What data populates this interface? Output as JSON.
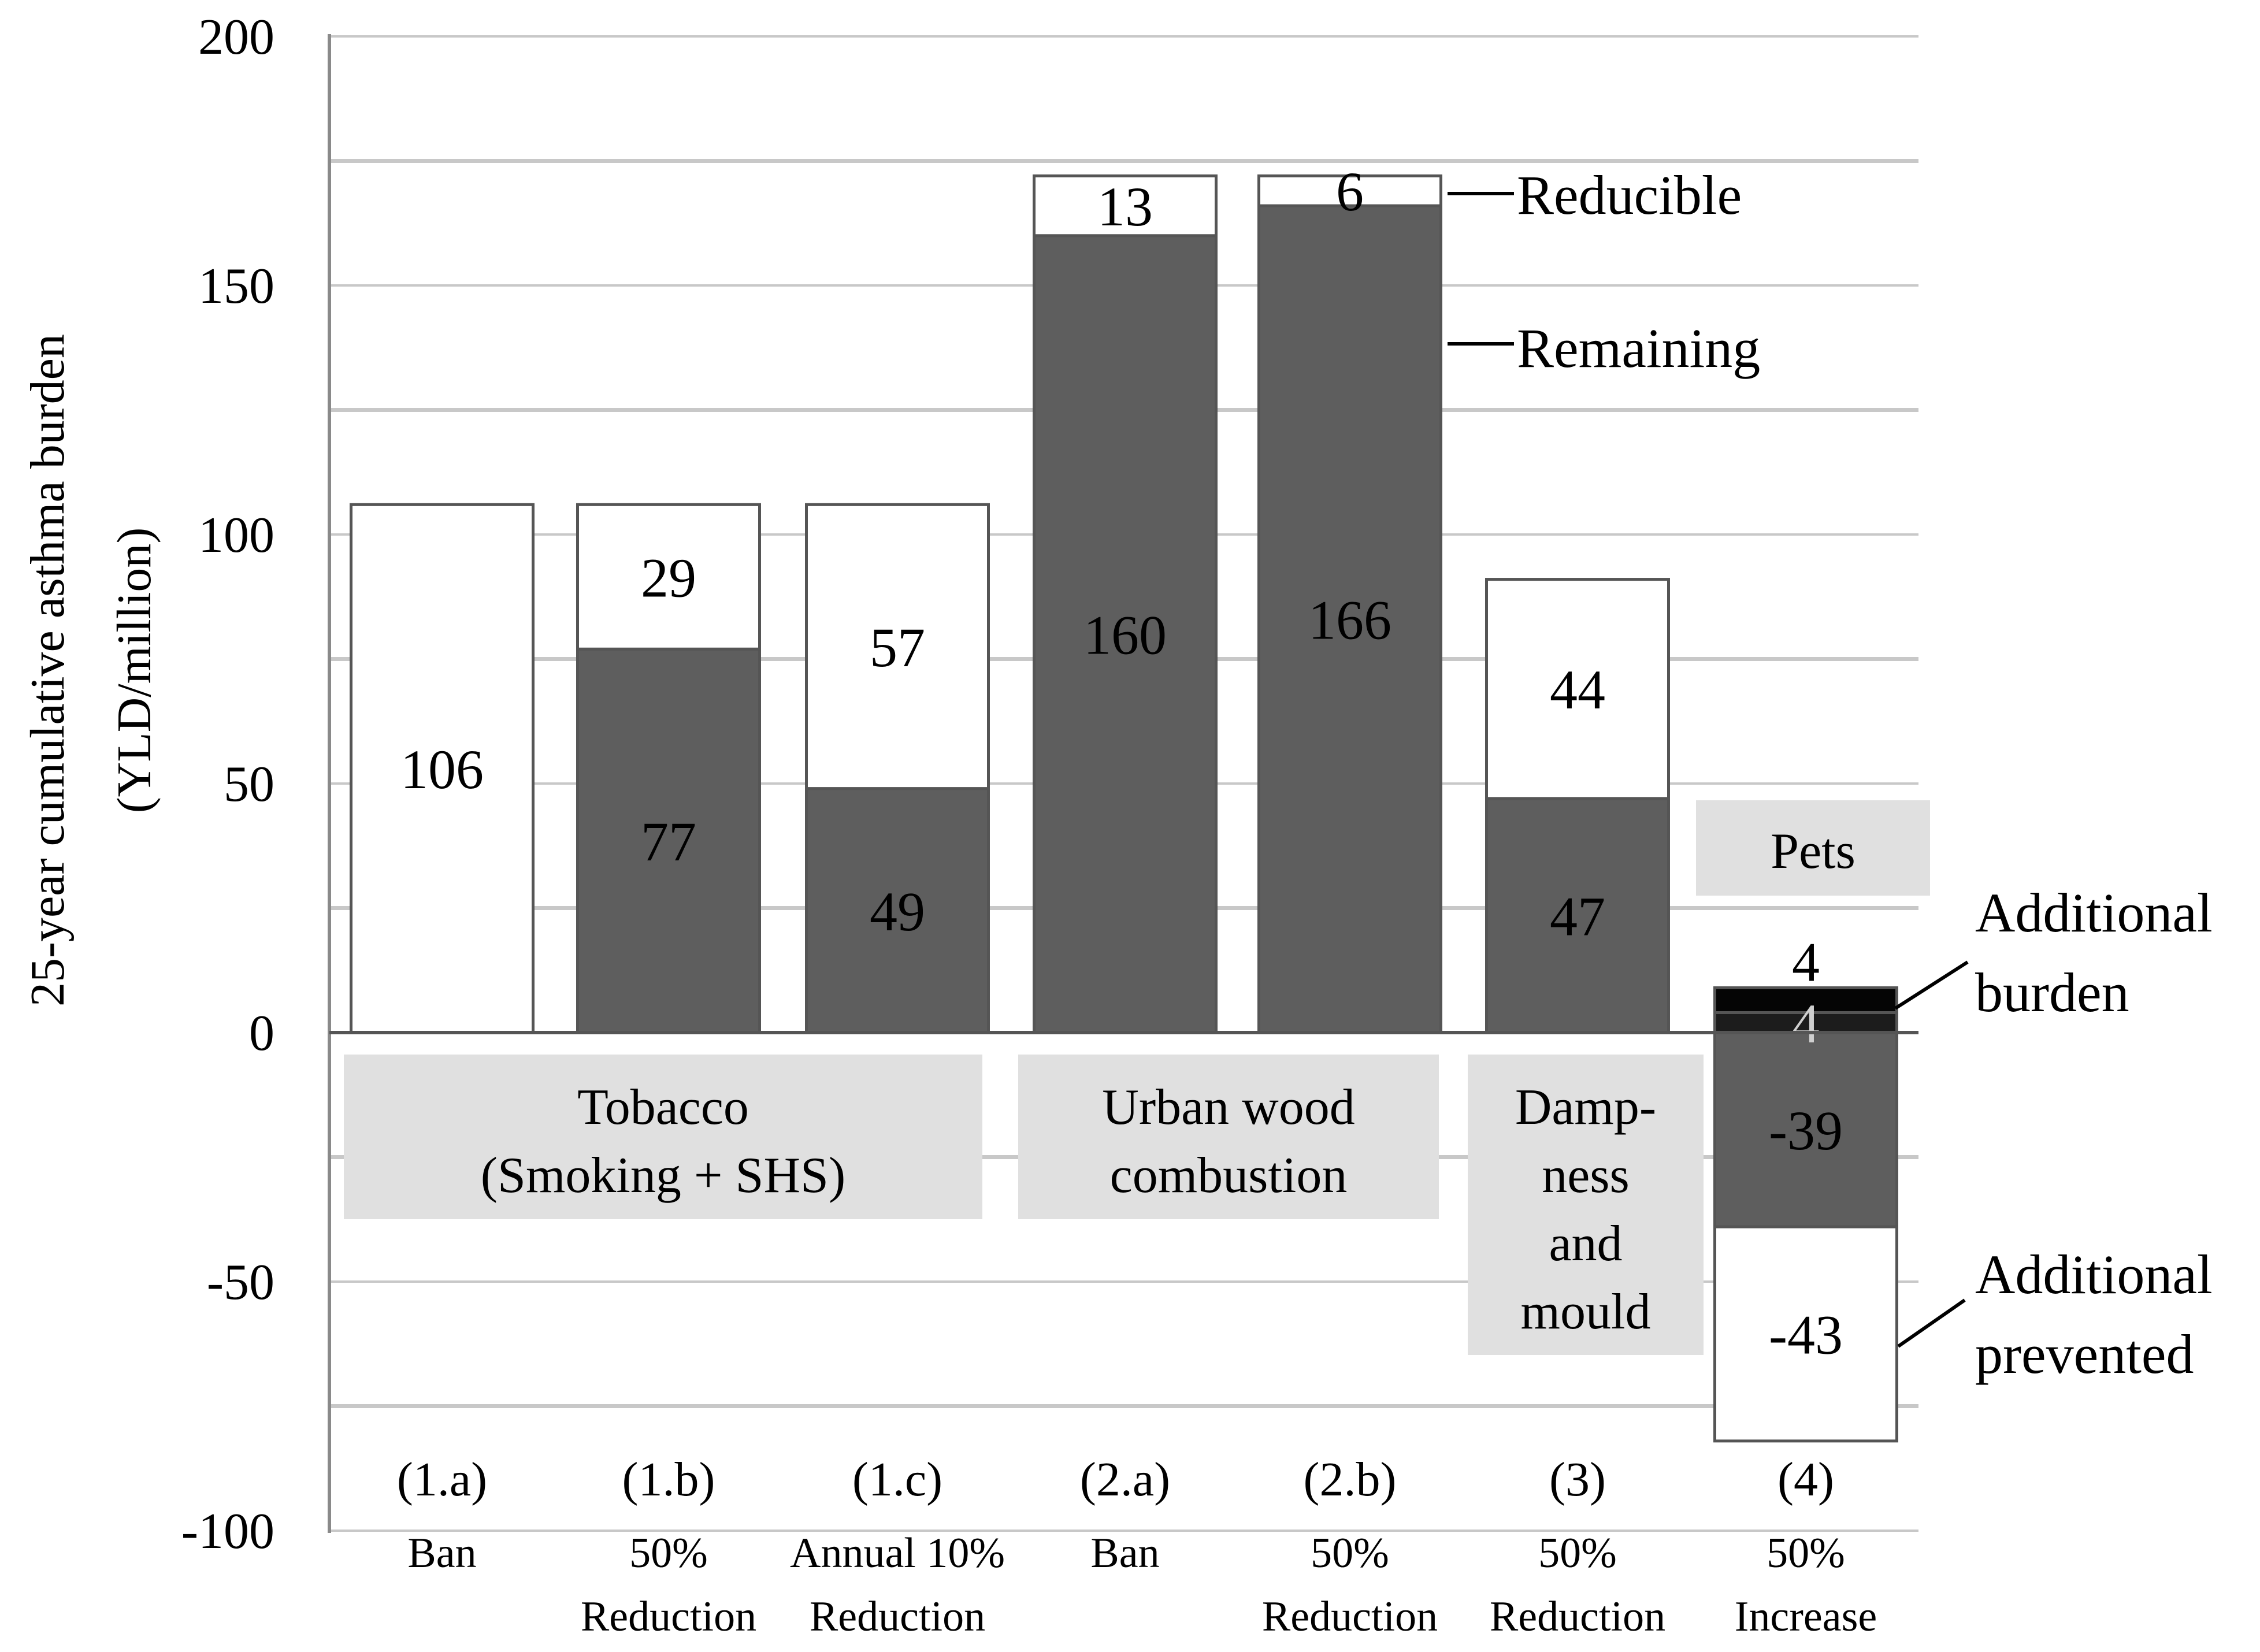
{
  "chart_data": {
    "type": "bar",
    "stacked": true,
    "ylabel": [
      "25-year cumulative asthma burden",
      "(YLD/million)"
    ],
    "ylim": [
      -100,
      200
    ],
    "yticks": [
      -100,
      -50,
      0,
      50,
      100,
      150,
      200
    ],
    "categories": [
      {
        "code": "(1.a)",
        "sub": [
          "Ban"
        ]
      },
      {
        "code": "(1.b)",
        "sub": [
          "50%",
          "Reduction"
        ]
      },
      {
        "code": "(1.c)",
        "sub": [
          "Annual 10%",
          "Reduction"
        ]
      },
      {
        "code": "(2.a)",
        "sub": [
          "Ban"
        ]
      },
      {
        "code": "(2.b)",
        "sub": [
          "50%",
          "Reduction"
        ]
      },
      {
        "code": "(3)",
        "sub": [
          "50%",
          "Reduction"
        ]
      },
      {
        "code": "(4)",
        "sub": [
          "50%",
          "Increase"
        ]
      }
    ],
    "segments": [
      [
        {
          "from": 0,
          "to": 106,
          "fill": "#ffffff",
          "label": "106",
          "labelColor": "#000000"
        }
      ],
      [
        {
          "from": 0,
          "to": 77,
          "fill": "#5e5e5e",
          "label": "77",
          "labelColor": "#000000"
        },
        {
          "from": 77,
          "to": 106,
          "fill": "#ffffff",
          "label": "29",
          "labelColor": "#000000"
        }
      ],
      [
        {
          "from": 0,
          "to": 49,
          "fill": "#5e5e5e",
          "label": "49",
          "labelColor": "#000000"
        },
        {
          "from": 49,
          "to": 106,
          "fill": "#ffffff",
          "label": "57",
          "labelColor": "#000000"
        }
      ],
      [
        {
          "from": 0,
          "to": 160,
          "fill": "#5e5e5e",
          "label": "160",
          "labelColor": "#000000"
        },
        {
          "from": 160,
          "to": 172,
          "fill": "#ffffff",
          "label": "13",
          "labelColor": "#000000"
        }
      ],
      [
        {
          "from": 0,
          "to": 166,
          "fill": "#5e5e5e",
          "label": "166",
          "labelColor": "#000000"
        },
        {
          "from": 166,
          "to": 172,
          "fill": "#ffffff",
          "label": "6",
          "labelColor": "#000000"
        }
      ],
      [
        {
          "from": 0,
          "to": 47,
          "fill": "#5e5e5e",
          "label": "47",
          "labelColor": "#000000"
        },
        {
          "from": 47,
          "to": 91,
          "fill": "#ffffff",
          "label": "44",
          "labelColor": "#000000"
        }
      ],
      [
        {
          "from": 4,
          "to": 9,
          "fill": "#050505",
          "label": "4",
          "labelColor": "#000000",
          "labelAbove": true
        },
        {
          "from": 0,
          "to": 4,
          "fill": "#1c1c1c",
          "label": "4",
          "labelColor": "#cfcfcf"
        },
        {
          "from": -39,
          "to": 0,
          "fill": "#5e5e5e",
          "label": "-39",
          "labelColor": "#000000"
        },
        {
          "from": -82,
          "to": -39,
          "fill": "#ffffff",
          "label": "-43",
          "labelColor": "#000000"
        }
      ]
    ],
    "group_labels": [
      {
        "lines": [
          "Tobacco",
          "(Smoking + SHS)"
        ],
        "from_cat": 0,
        "to_cat": 2
      },
      {
        "lines": [
          "Urban wood",
          "combustion"
        ],
        "from_cat": 3,
        "to_cat": 4
      },
      {
        "lines": [
          "Damp-",
          "ness",
          "and",
          "mould"
        ],
        "from_cat": 5,
        "to_cat": 5
      },
      {
        "lines": [
          "Pets"
        ],
        "from_cat": 6,
        "to_cat": 6
      }
    ],
    "annotations": [
      {
        "lines": [
          "Reducible"
        ],
        "points_to": "segment 2 of (2.b)"
      },
      {
        "lines": [
          "Remaining"
        ],
        "points_to": "segment 1 of (2.b)"
      },
      {
        "lines": [
          "Additional",
          "burden"
        ],
        "points_to": "positive segments of (4)"
      },
      {
        "lines": [
          "Additional",
          "prevented"
        ],
        "points_to": "-43 segment of (4)"
      }
    ],
    "colors": {
      "remaining": "#5e5e5e",
      "reducible": "#ffffff",
      "additional_burden": "#050505",
      "group_box": "#e0e0e0",
      "grid": "#c8c8c8"
    },
    "grid": true
  }
}
